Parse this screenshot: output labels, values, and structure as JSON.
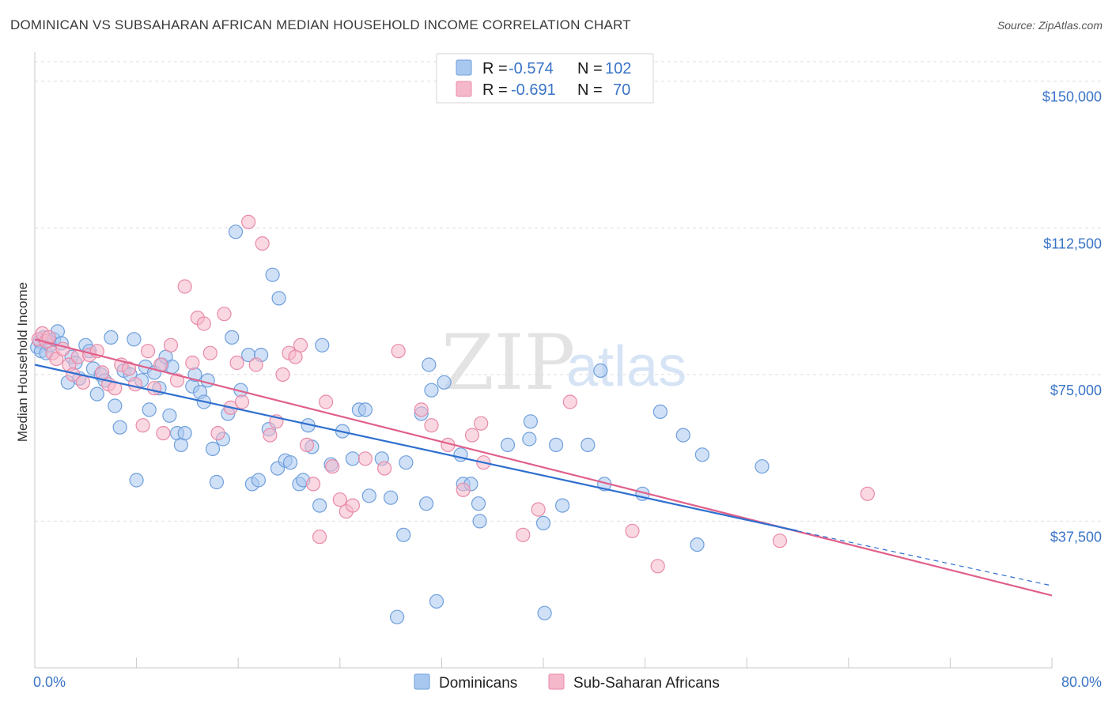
{
  "title": "DOMINICAN VS SUBSAHARAN AFRICAN MEDIAN HOUSEHOLD INCOME CORRELATION CHART",
  "source": "Source: ZipAtlas.com",
  "watermark": {
    "part1": "ZIP",
    "part2": "atlas"
  },
  "legend": {
    "rows": [
      {
        "r_label": "R =",
        "r_value": "-0.574",
        "n_label": "N =",
        "n_value": "102"
      },
      {
        "r_label": "R =",
        "r_value": "-0.691",
        "n_label": "N =",
        "n_value": "70"
      }
    ]
  },
  "colors": {
    "blue_fill": "#a9c8f0",
    "blue_stroke": "#6f9fdc",
    "blue_line": "#2e6fcf",
    "pink_fill": "#f5b8cb",
    "pink_stroke": "#e88aa8",
    "pink_line": "#e0608a",
    "tick_text": "#3a74c7"
  },
  "chart_data": {
    "type": "scatter",
    "title": "DOMINICAN VS SUBSAHARAN AFRICAN MEDIAN HOUSEHOLD INCOME CORRELATION CHART",
    "xlabel": "",
    "ylabel": "Median Household Income",
    "xlim": [
      0,
      80
    ],
    "ylim": [
      0,
      155000
    ],
    "x_tick_labels": [
      "0.0%",
      "80.0%"
    ],
    "y_ticks": [
      37500,
      75000,
      112500,
      150000
    ],
    "y_tick_labels": [
      "$37,500",
      "$75,000",
      "$112,500",
      "$150,000"
    ],
    "grid": true,
    "legend_position": "top-center",
    "series": [
      {
        "name": "Dominicans",
        "r": -0.574,
        "n": 102,
        "trend": {
          "x": [
            0,
            60
          ],
          "y": [
            77500,
            35000
          ]
        },
        "trend_extension": {
          "x": [
            60,
            80
          ],
          "y": [
            35000,
            21000
          ]
        },
        "points": [
          [
            0.2,
            82000
          ],
          [
            0.4,
            83500
          ],
          [
            0.5,
            81000
          ],
          [
            0.7,
            84500
          ],
          [
            0.9,
            80500
          ],
          [
            1.2,
            82500
          ],
          [
            1.5,
            84000
          ],
          [
            1.8,
            86000
          ],
          [
            2.1,
            83000
          ],
          [
            2.6,
            73000
          ],
          [
            2.9,
            79500
          ],
          [
            3.2,
            78000
          ],
          [
            3.5,
            74000
          ],
          [
            4.0,
            82500
          ],
          [
            4.3,
            81000
          ],
          [
            4.6,
            76500
          ],
          [
            4.9,
            70000
          ],
          [
            5.2,
            75000
          ],
          [
            5.5,
            73500
          ],
          [
            6.0,
            84500
          ],
          [
            6.3,
            67000
          ],
          [
            6.7,
            61500
          ],
          [
            7.0,
            76000
          ],
          [
            7.5,
            75000
          ],
          [
            7.8,
            84000
          ],
          [
            8.0,
            48000
          ],
          [
            8.4,
            73500
          ],
          [
            8.7,
            77000
          ],
          [
            9.0,
            66000
          ],
          [
            9.4,
            75500
          ],
          [
            9.8,
            71500
          ],
          [
            10.0,
            77500
          ],
          [
            10.3,
            79500
          ],
          [
            10.6,
            64500
          ],
          [
            10.8,
            77000
          ],
          [
            11.2,
            60000
          ],
          [
            11.5,
            57000
          ],
          [
            11.8,
            60000
          ],
          [
            12.4,
            72000
          ],
          [
            12.6,
            75000
          ],
          [
            13.0,
            70500
          ],
          [
            13.3,
            68000
          ],
          [
            13.6,
            73500
          ],
          [
            14.0,
            56000
          ],
          [
            14.3,
            47500
          ],
          [
            14.8,
            58500
          ],
          [
            15.2,
            65000
          ],
          [
            15.5,
            84500
          ],
          [
            15.8,
            111500
          ],
          [
            16.2,
            71000
          ],
          [
            16.8,
            80000
          ],
          [
            17.1,
            47000
          ],
          [
            17.6,
            48000
          ],
          [
            17.8,
            80000
          ],
          [
            18.4,
            61000
          ],
          [
            18.7,
            100500
          ],
          [
            19.1,
            51000
          ],
          [
            19.2,
            94500
          ],
          [
            19.7,
            53000
          ],
          [
            20.1,
            52500
          ],
          [
            20.8,
            47000
          ],
          [
            21.1,
            48000
          ],
          [
            21.5,
            62000
          ],
          [
            21.8,
            56500
          ],
          [
            22.4,
            41500
          ],
          [
            22.6,
            82500
          ],
          [
            23.3,
            52000
          ],
          [
            24.2,
            60500
          ],
          [
            25.0,
            53500
          ],
          [
            25.5,
            66000
          ],
          [
            26.0,
            66000
          ],
          [
            26.3,
            44000
          ],
          [
            27.3,
            53500
          ],
          [
            28.0,
            43500
          ],
          [
            28.5,
            13000
          ],
          [
            29.0,
            34000
          ],
          [
            29.2,
            52500
          ],
          [
            30.4,
            65000
          ],
          [
            30.8,
            42000
          ],
          [
            31.0,
            77500
          ],
          [
            31.2,
            71000
          ],
          [
            31.6,
            17000
          ],
          [
            32.2,
            73000
          ],
          [
            33.5,
            54500
          ],
          [
            33.7,
            47000
          ],
          [
            34.3,
            47000
          ],
          [
            34.9,
            42000
          ],
          [
            35.0,
            37500
          ],
          [
            37.2,
            57000
          ],
          [
            38.9,
            58500
          ],
          [
            39.0,
            63000
          ],
          [
            40.0,
            37000
          ],
          [
            40.1,
            14000
          ],
          [
            41.0,
            57000
          ],
          [
            41.5,
            41500
          ],
          [
            43.5,
            57000
          ],
          [
            44.5,
            76000
          ],
          [
            44.8,
            47000
          ],
          [
            47.8,
            44500
          ],
          [
            49.2,
            65500
          ],
          [
            51.0,
            59500
          ],
          [
            52.1,
            31500
          ],
          [
            52.5,
            54500
          ],
          [
            57.2,
            51500
          ]
        ]
      },
      {
        "name": "Sub-Saharan Africans",
        "r": -0.691,
        "n": 70,
        "trend": {
          "x": [
            0,
            80
          ],
          "y": [
            84000,
            18500
          ]
        },
        "points": [
          [
            0.3,
            84000
          ],
          [
            0.6,
            85500
          ],
          [
            0.9,
            83500
          ],
          [
            1.1,
            84500
          ],
          [
            1.4,
            80500
          ],
          [
            1.7,
            79000
          ],
          [
            2.2,
            81500
          ],
          [
            2.7,
            77500
          ],
          [
            3.0,
            75000
          ],
          [
            3.4,
            79500
          ],
          [
            3.8,
            73000
          ],
          [
            4.3,
            80000
          ],
          [
            4.9,
            81000
          ],
          [
            5.3,
            75500
          ],
          [
            5.8,
            72500
          ],
          [
            6.3,
            71500
          ],
          [
            6.8,
            77500
          ],
          [
            7.4,
            76500
          ],
          [
            7.9,
            72500
          ],
          [
            8.5,
            62000
          ],
          [
            8.9,
            81000
          ],
          [
            9.4,
            71500
          ],
          [
            9.9,
            77500
          ],
          [
            10.1,
            60000
          ],
          [
            10.7,
            82500
          ],
          [
            11.2,
            73500
          ],
          [
            11.8,
            97500
          ],
          [
            12.4,
            78000
          ],
          [
            12.8,
            89500
          ],
          [
            13.3,
            88000
          ],
          [
            13.8,
            80500
          ],
          [
            14.4,
            60000
          ],
          [
            14.9,
            90500
          ],
          [
            15.4,
            66500
          ],
          [
            15.9,
            78000
          ],
          [
            16.3,
            68000
          ],
          [
            16.8,
            114000
          ],
          [
            17.4,
            77500
          ],
          [
            17.9,
            108500
          ],
          [
            18.5,
            59500
          ],
          [
            19.0,
            63000
          ],
          [
            19.5,
            75000
          ],
          [
            20.0,
            80500
          ],
          [
            20.5,
            79500
          ],
          [
            20.9,
            82500
          ],
          [
            21.4,
            57000
          ],
          [
            21.9,
            47000
          ],
          [
            22.4,
            33500
          ],
          [
            22.9,
            68000
          ],
          [
            23.4,
            51500
          ],
          [
            24.0,
            43000
          ],
          [
            24.5,
            40000
          ],
          [
            25.0,
            41500
          ],
          [
            26.0,
            53500
          ],
          [
            27.5,
            51000
          ],
          [
            28.6,
            81000
          ],
          [
            30.4,
            66000
          ],
          [
            31.2,
            62000
          ],
          [
            32.5,
            57000
          ],
          [
            33.7,
            45500
          ],
          [
            34.4,
            59500
          ],
          [
            35.1,
            62500
          ],
          [
            35.3,
            52500
          ],
          [
            38.4,
            34000
          ],
          [
            39.6,
            40500
          ],
          [
            42.1,
            68000
          ],
          [
            47.0,
            35000
          ],
          [
            49.0,
            26000
          ],
          [
            58.6,
            32500
          ],
          [
            65.5,
            44500
          ]
        ]
      }
    ]
  },
  "bottom_legend": [
    {
      "label": "Dominicans"
    },
    {
      "label": "Sub-Saharan Africans"
    }
  ]
}
